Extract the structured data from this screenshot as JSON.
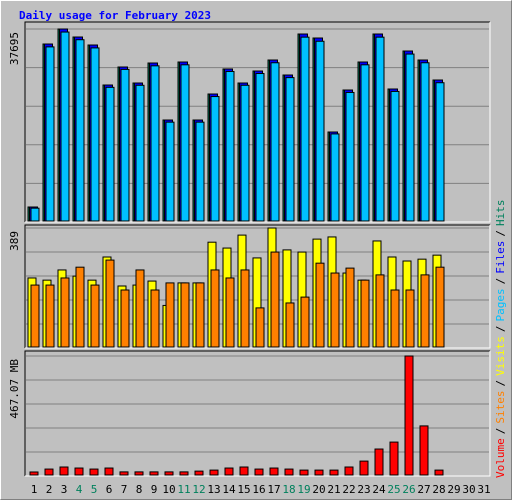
{
  "chart_data": {
    "type": "bar",
    "title": "Daily usage for February 2023",
    "categories": [
      "1",
      "2",
      "3",
      "4",
      "5",
      "6",
      "7",
      "8",
      "9",
      "10",
      "11",
      "12",
      "13",
      "14",
      "15",
      "16",
      "17",
      "18",
      "19",
      "20",
      "21",
      "22",
      "23",
      "24",
      "25",
      "26",
      "27",
      "28",
      "29",
      "30",
      "31"
    ],
    "weekends": [
      3,
      4,
      10,
      11,
      17,
      18,
      24,
      25
    ],
    "weekend_color": "#00805C",
    "weekday_color": "#000000",
    "grid_divisions": 5,
    "legend_separator": "/",
    "panels": [
      {
        "ylim": [
          0,
          37695
        ],
        "yticks": [
          37695
        ],
        "series": [
          {
            "name": "Hits",
            "color": "#00805C",
            "values": [
              2930,
              34763,
              37695,
              36131,
              34569,
              26757,
              30272,
              27147,
              31053,
              19921,
              31249,
              19921,
              24999,
              29882,
              27147,
              29491,
              31639,
              28710,
              36717,
              35936,
              17578,
              25780,
              31249,
              36717,
              25976,
              33397,
              31639,
              27733
            ]
          },
          {
            "name": "Files",
            "color": "#0000FF",
            "values": [
              2930,
              34763,
              37695,
              36131,
              34569,
              26757,
              30272,
              27147,
              31053,
              19921,
              31249,
              19921,
              24999,
              29882,
              27147,
              29491,
              31639,
              28710,
              36717,
              35936,
              17578,
              25780,
              31249,
              36717,
              25976,
              33397,
              31639,
              27733
            ]
          },
          {
            "name": "Pages",
            "color": "#00C0FF",
            "values": [
              2700,
              34200,
              37100,
              35600,
              34000,
              26300,
              29800,
              26700,
              30500,
              19500,
              30700,
              19500,
              24500,
              29400,
              26700,
              29000,
              31100,
              28200,
              36100,
              35300,
              17200,
              25300,
              30700,
              36100,
              25500,
              32800,
              31100,
              27200
            ]
          }
        ]
      },
      {
        "ylim": [
          0,
          389
        ],
        "yticks": [
          389
        ],
        "series": [
          {
            "name": "Visits",
            "color": "#FFFF00",
            "values": [
              227,
              220,
              253,
              233,
              220,
              295,
              201,
              204,
              217,
              138,
              211,
              211,
              343,
              324,
              366,
              292,
              389,
              318,
              311,
              353,
              360,
              243,
              220,
              347,
              295,
              282,
              288,
              301
            ]
          },
          {
            "name": "Sites",
            "color": "#FF8000",
            "values": [
              204,
              204,
              227,
              262,
              204,
              285,
              188,
              253,
              188,
              211,
              211,
              211,
              253,
              227,
              253,
              130,
              311,
              146,
              165,
              275,
              243,
              259,
              220,
              237,
              188,
              188,
              237,
              262
            ]
          }
        ]
      },
      {
        "ylim": [
          0,
          467.07
        ],
        "yticks": [
          {
            "value": 467.07,
            "label": "467.07 MB"
          }
        ],
        "series": [
          {
            "name": "Volume",
            "color": "#FF0000",
            "values": [
              15.6,
              27,
              35,
              31,
              27,
              31,
              16,
              16,
              16,
              16,
              16,
              19,
              23,
              31,
              35,
              27,
              31,
              27,
              23,
              23,
              23,
              35,
              58,
              105,
              132,
              467.07,
              195,
              23
            ]
          }
        ]
      }
    ]
  }
}
